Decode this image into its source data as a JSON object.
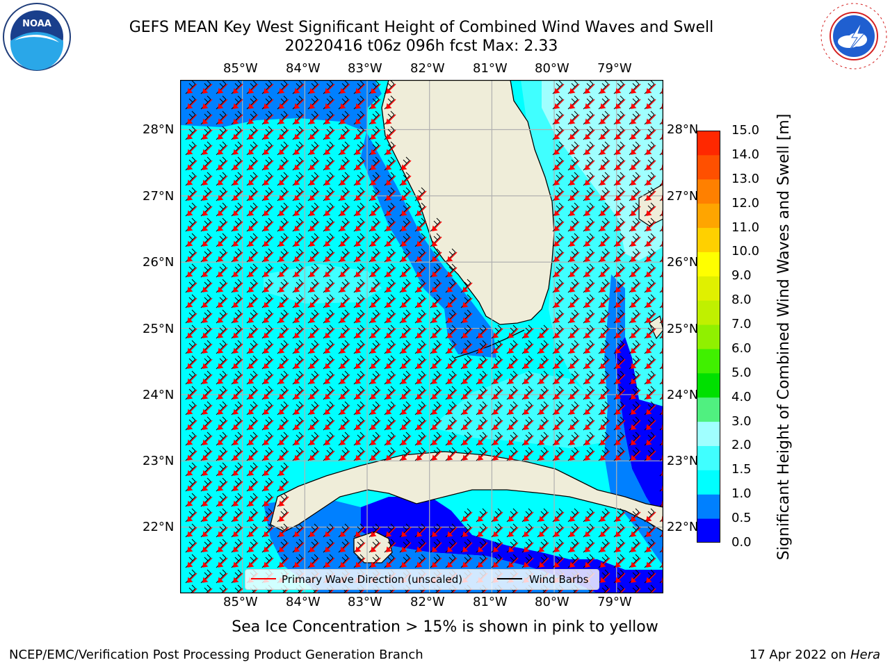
{
  "title": {
    "line1": "GEFS MEAN Key West Significant Height of Combined Wind Waves and Swell",
    "line2": "20220416 t06z 096h fcst   Max: 2.33"
  },
  "map": {
    "lon_labels": [
      "85°W",
      "84°W",
      "83°W",
      "82°W",
      "81°W",
      "80°W",
      "79°W"
    ],
    "lat_labels": [
      "28°N",
      "27°N",
      "26°N",
      "25°N",
      "24°N",
      "23°N",
      "22°N"
    ],
    "lon_range": [
      -86.0,
      -78.25
    ],
    "lat_range": [
      21.0,
      28.75
    ]
  },
  "legend": {
    "wave_direction": "Primary Wave Direction (unscaled)",
    "wind_barbs": "Wind Barbs",
    "wave_color": "#ff0000",
    "barb_color": "#000000"
  },
  "colorbar": {
    "label": "Significant Height of Combined Wind Waves and Swell [m]",
    "ticks": [
      "0.0",
      "0.5",
      "1.0",
      "1.5",
      "2.0",
      "3.0",
      "4.0",
      "5.0",
      "6.0",
      "7.0",
      "8.0",
      "9.0",
      "10.0",
      "11.0",
      "12.0",
      "13.0",
      "14.0",
      "15.0"
    ],
    "colors": [
      "#0000ff",
      "#0080ff",
      "#00ffff",
      "#40ffff",
      "#a0ffff",
      "#50f080",
      "#00e000",
      "#40f000",
      "#90f000",
      "#c0f000",
      "#e0f000",
      "#ffff00",
      "#ffd000",
      "#ffa500",
      "#ff8000",
      "#ff5000",
      "#ff2800"
    ]
  },
  "colors": {
    "land": "#efedd9",
    "grid": "#b0b0b0",
    "coast": "#000000"
  },
  "icons": {
    "left_logo": "noaa-logo",
    "right_logo": "nws-logo"
  },
  "logo_text": {
    "noaa": "NOAA",
    "noaa_ring": "NATIONAL OCEANIC AND ATMOSPHERIC ADMINISTRATION · U.S. DEPARTMENT OF COMMERCE",
    "nws_ring": "NATIONAL WEATHER SERVICE"
  },
  "note": "Sea Ice Concentration > 15% is shown in pink to yellow",
  "footer": {
    "left": "NCEP/EMC/Verification Post Processing Product Generation Branch",
    "right_prefix": "17 Apr 2022 on ",
    "right_host": "Hera"
  }
}
